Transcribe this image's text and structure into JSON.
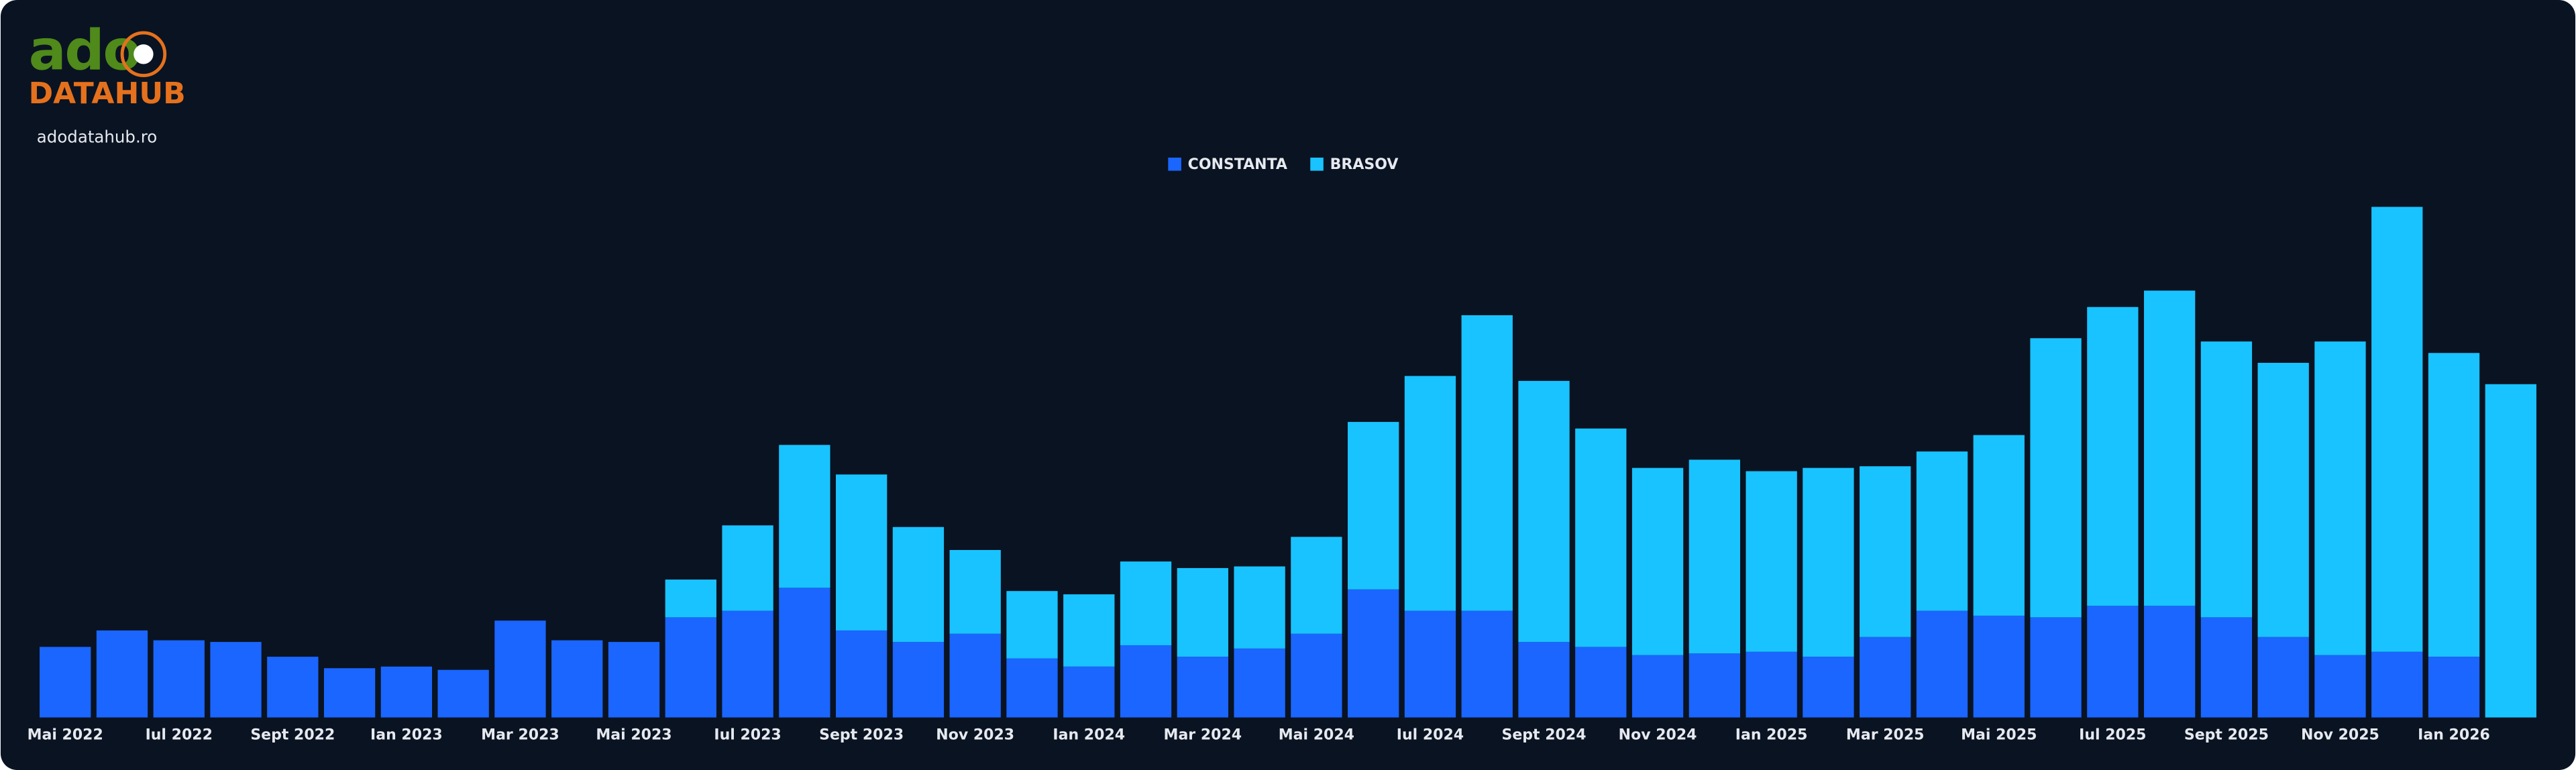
{
  "brand": {
    "logo_top": "ado",
    "logo_bottom": "DATAHUB",
    "site": "adodatahub.ro"
  },
  "chart_data": {
    "type": "stacked_bar",
    "categories": [
      "Mai 2022",
      null,
      "Iul 2022",
      null,
      "Sept 2022",
      null,
      "Ian 2023",
      null,
      "Mar 2023",
      null,
      "Mai 2023",
      null,
      "Iul 2023",
      null,
      "Sept 2023",
      null,
      "Nov 2023",
      null,
      "Ian 2024",
      null,
      "Mar 2024",
      null,
      "Mai 2024",
      null,
      "Iul 2024",
      null,
      "Sept 2024",
      null,
      "Nov 2024",
      null,
      "Ian 2025",
      null,
      "Mar 2025",
      null,
      "Mai 2025",
      null,
      "Iul 2025",
      null,
      "Sept 2025",
      null,
      "Nov 2025",
      null,
      "Ian 2026",
      null
    ],
    "series": [
      {
        "name": "CONSTANTA",
        "color": "#1a66ff",
        "values": [
          43,
          53,
          47,
          46,
          37,
          30,
          31,
          29,
          59,
          47,
          46,
          61,
          65,
          79,
          53,
          46,
          51,
          36,
          31,
          44,
          37,
          42,
          51,
          78,
          65,
          65,
          46,
          43,
          38,
          39,
          40,
          37,
          49,
          65,
          62,
          61,
          68,
          68,
          61,
          49,
          38,
          40,
          37,
          0
        ]
      },
      {
        "name": "BRASOV",
        "color": "#19c3ff",
        "values": [
          0,
          0,
          0,
          0,
          0,
          0,
          0,
          0,
          0,
          0,
          0,
          23,
          52,
          87,
          95,
          70,
          51,
          41,
          44,
          51,
          54,
          50,
          59,
          102,
          143,
          180,
          159,
          133,
          114,
          118,
          110,
          115,
          104,
          97,
          110,
          170,
          182,
          192,
          168,
          167,
          191,
          271,
          185,
          203
        ]
      }
    ],
    "ylim": [
      0,
      330
    ],
    "legend": "top"
  }
}
